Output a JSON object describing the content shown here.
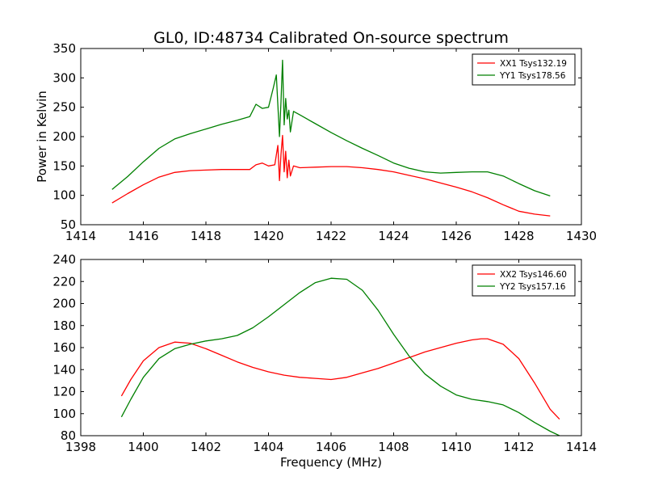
{
  "chart_data": [
    {
      "type": "line",
      "title": "GL0, ID:48734 Calibrated On-source spectrum",
      "xlabel": "",
      "ylabel": "Power in Kelvin",
      "xlim": [
        1414,
        1430
      ],
      "ylim": [
        50,
        350
      ],
      "xticks": [
        1414,
        1416,
        1418,
        1420,
        1422,
        1424,
        1426,
        1428,
        1430
      ],
      "yticks": [
        50,
        100,
        150,
        200,
        250,
        300,
        350
      ],
      "grid": false,
      "legend_position": "top-right",
      "series": [
        {
          "name": "XX1 Tsys132.19",
          "color": "#ff0000",
          "x": [
            1415.0,
            1415.5,
            1416.0,
            1416.5,
            1417.0,
            1417.5,
            1418.0,
            1418.5,
            1419.0,
            1419.4,
            1419.6,
            1419.8,
            1420.0,
            1420.2,
            1420.3,
            1420.35,
            1420.4,
            1420.45,
            1420.5,
            1420.55,
            1420.6,
            1420.65,
            1420.7,
            1420.8,
            1421.0,
            1421.5,
            1422.0,
            1422.5,
            1423.0,
            1423.5,
            1424.0,
            1424.5,
            1425.0,
            1425.5,
            1426.0,
            1426.5,
            1427.0,
            1427.5,
            1428.0,
            1428.5,
            1429.0
          ],
          "y": [
            87,
            103,
            118,
            131,
            139,
            142,
            143,
            144,
            144,
            144,
            152,
            155,
            150,
            152,
            185,
            125,
            170,
            202,
            140,
            175,
            130,
            160,
            133,
            150,
            147,
            148,
            149,
            149,
            147,
            144,
            140,
            134,
            128,
            121,
            114,
            106,
            96,
            84,
            73,
            68,
            65
          ]
        },
        {
          "name": "YY1 Tsys178.56",
          "color": "#008000",
          "x": [
            1415.0,
            1415.5,
            1416.0,
            1416.5,
            1417.0,
            1417.5,
            1418.0,
            1418.5,
            1419.0,
            1419.4,
            1419.6,
            1419.8,
            1420.0,
            1420.15,
            1420.25,
            1420.35,
            1420.4,
            1420.45,
            1420.5,
            1420.55,
            1420.6,
            1420.65,
            1420.7,
            1420.8,
            1421.0,
            1421.5,
            1422.0,
            1422.5,
            1423.0,
            1423.5,
            1424.0,
            1424.5,
            1425.0,
            1425.5,
            1426.0,
            1426.5,
            1427.0,
            1427.5,
            1428.0,
            1428.5,
            1429.0
          ],
          "y": [
            110,
            132,
            157,
            180,
            196,
            205,
            213,
            221,
            228,
            234,
            255,
            248,
            250,
            282,
            305,
            200,
            260,
            330,
            220,
            265,
            230,
            245,
            208,
            243,
            237,
            222,
            207,
            193,
            180,
            168,
            155,
            146,
            140,
            138,
            139,
            140,
            140,
            133,
            120,
            108,
            99
          ]
        }
      ]
    },
    {
      "type": "line",
      "title": "",
      "xlabel": "Frequency (MHz)",
      "ylabel": "",
      "xlim": [
        1398,
        1414
      ],
      "ylim": [
        80,
        240
      ],
      "xticks": [
        1398,
        1400,
        1402,
        1404,
        1406,
        1408,
        1410,
        1412,
        1414
      ],
      "yticks": [
        80,
        100,
        120,
        140,
        160,
        180,
        200,
        220,
        240
      ],
      "grid": false,
      "legend_position": "top-right",
      "series": [
        {
          "name": "XX2 Tsys146.60",
          "color": "#ff0000",
          "x": [
            1399.3,
            1399.6,
            1400.0,
            1400.5,
            1401.0,
            1401.5,
            1402.0,
            1402.5,
            1403.0,
            1403.5,
            1404.0,
            1404.5,
            1405.0,
            1405.5,
            1406.0,
            1406.5,
            1407.0,
            1407.5,
            1408.0,
            1408.5,
            1409.0,
            1409.5,
            1410.0,
            1410.5,
            1410.8,
            1411.0,
            1411.5,
            1412.0,
            1412.5,
            1413.0,
            1413.3
          ],
          "y": [
            116,
            131,
            148,
            160,
            165,
            164,
            159,
            153,
            147,
            142,
            138,
            135,
            133,
            132,
            131,
            133,
            137,
            141,
            146,
            151,
            156,
            160,
            164,
            167,
            168,
            168,
            163,
            150,
            128,
            104,
            95
          ]
        },
        {
          "name": "YY2 Tsys157.16",
          "color": "#008000",
          "x": [
            1399.3,
            1399.6,
            1400.0,
            1400.5,
            1401.0,
            1401.5,
            1402.0,
            1402.5,
            1403.0,
            1403.5,
            1404.0,
            1404.5,
            1405.0,
            1405.5,
            1406.0,
            1406.5,
            1407.0,
            1407.5,
            1408.0,
            1408.5,
            1409.0,
            1409.5,
            1410.0,
            1410.5,
            1411.0,
            1411.5,
            1412.0,
            1412.5,
            1413.0,
            1413.3
          ],
          "y": [
            97,
            113,
            133,
            150,
            159,
            163,
            166,
            168,
            171,
            178,
            188,
            199,
            210,
            219,
            223,
            222,
            212,
            194,
            172,
            152,
            136,
            125,
            117,
            113,
            111,
            108,
            101,
            92,
            84,
            80
          ]
        }
      ]
    }
  ]
}
